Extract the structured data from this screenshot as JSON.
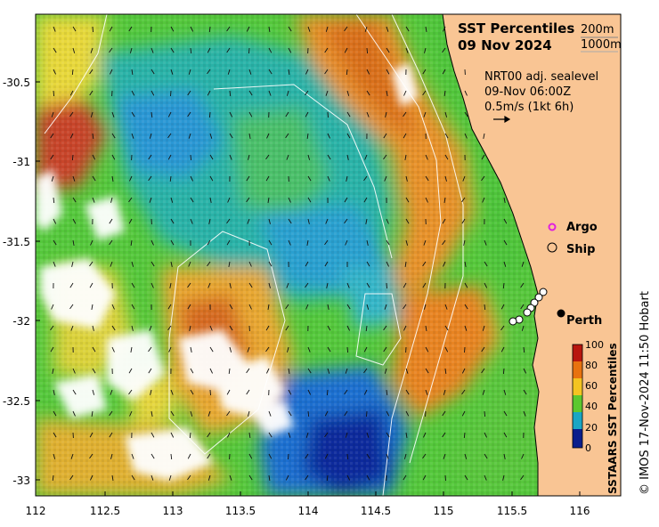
{
  "title": {
    "line1": "SST Percentiles",
    "line2": "09 Nov 2024"
  },
  "contours": {
    "a": "200m",
    "b": "1000m"
  },
  "current_info": {
    "line1": "NRT00 adj. sealevel",
    "line2": "09-Nov 06:00Z",
    "line3": "0.5m/s (1kt 6h)"
  },
  "legend": {
    "argo": "Argo",
    "ship": "Ship"
  },
  "city": "Perth",
  "colorbar": {
    "label": "SSTAARS SST Percentiles",
    "ticks": [
      "100",
      "80",
      "60",
      "40",
      "20",
      "0"
    ]
  },
  "x_ticks": [
    "112",
    "112.5",
    "113",
    "113.5",
    "114",
    "114.5",
    "115",
    "115.5",
    "116"
  ],
  "y_ticks": [
    "-30.5",
    "-31",
    "-31.5",
    "-32",
    "-32.5",
    "-33"
  ],
  "credit": "© IMOS 17-Nov-2024 11:50 Hobart",
  "colors": {
    "land": "#f9c594",
    "warm": "#e89a2a",
    "mid": "#55c83c",
    "cool": "#1f9fd8",
    "deep": "#0a2a9c",
    "hot": "#b02214"
  }
}
